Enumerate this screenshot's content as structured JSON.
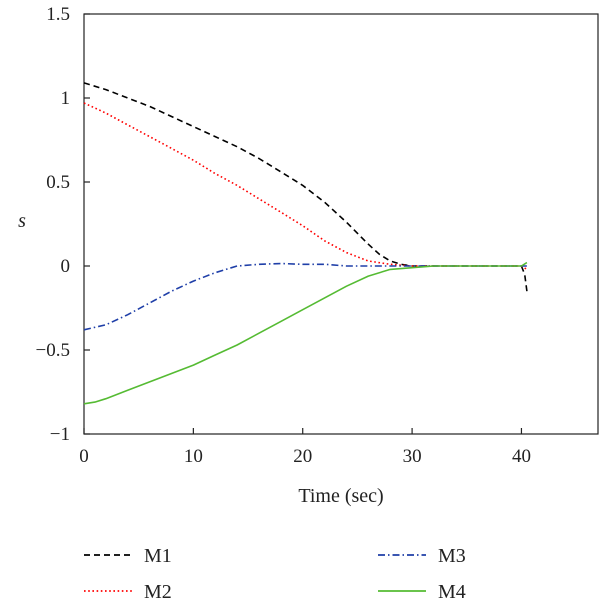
{
  "chart_data": {
    "type": "line",
    "title": "",
    "xlabel": "Time (sec)",
    "ylabel": "s",
    "xlim": [
      0,
      47
    ],
    "ylim": [
      -1,
      1.5
    ],
    "xticks": [
      0,
      10,
      20,
      30,
      40
    ],
    "yticks": [
      -1,
      -0.5,
      0,
      0.5,
      1,
      1.5
    ],
    "ytick_labels": [
      "−1",
      "−0.5",
      "0",
      "0.5",
      "1",
      "1.5"
    ],
    "grid": false,
    "legend_position": "bottom",
    "series": [
      {
        "name": "M1",
        "color": "#000000",
        "dash": "dashed",
        "x": [
          0,
          2,
          4,
          6,
          8,
          10,
          12,
          14,
          16,
          18,
          20,
          22,
          24,
          26,
          27,
          28,
          29,
          30,
          32,
          34,
          36,
          38,
          40,
          40.3,
          40.5
        ],
        "y": [
          1.09,
          1.05,
          1.0,
          0.95,
          0.89,
          0.83,
          0.77,
          0.71,
          0.64,
          0.56,
          0.48,
          0.38,
          0.26,
          0.13,
          0.07,
          0.03,
          0.01,
          0.0,
          0.0,
          0.0,
          0.0,
          0.0,
          0.0,
          -0.05,
          -0.15
        ]
      },
      {
        "name": "M2",
        "color": "#ff0000",
        "dash": "dotted",
        "x": [
          0,
          2,
          4,
          6,
          8,
          10,
          12,
          14,
          16,
          18,
          20,
          22,
          24,
          26,
          28,
          30,
          32,
          34,
          36,
          38,
          40,
          40.5
        ],
        "y": [
          0.97,
          0.91,
          0.84,
          0.77,
          0.7,
          0.63,
          0.55,
          0.48,
          0.4,
          0.32,
          0.24,
          0.15,
          0.08,
          0.03,
          0.01,
          0.0,
          0.0,
          0.0,
          0.0,
          0.0,
          0.0,
          -0.02
        ]
      },
      {
        "name": "M3",
        "color": "#1f3fa8",
        "dash": "dashdot",
        "x": [
          0,
          2,
          4,
          6,
          8,
          10,
          12,
          14,
          16,
          18,
          20,
          22,
          24,
          26,
          28,
          30,
          32,
          34,
          36,
          38,
          40,
          40.5
        ],
        "y": [
          -0.38,
          -0.35,
          -0.29,
          -0.22,
          -0.15,
          -0.09,
          -0.04,
          0.0,
          0.01,
          0.015,
          0.01,
          0.01,
          0.0,
          0.0,
          0.0,
          0.0,
          0.0,
          0.0,
          0.0,
          0.0,
          0.0,
          0.0
        ]
      },
      {
        "name": "M4",
        "color": "#55bb33",
        "dash": "solid",
        "x": [
          0,
          1,
          2,
          4,
          6,
          8,
          10,
          12,
          14,
          16,
          18,
          20,
          22,
          24,
          26,
          28,
          30,
          32,
          34,
          36,
          38,
          40,
          40.5
        ],
        "y": [
          -0.82,
          -0.81,
          -0.79,
          -0.74,
          -0.69,
          -0.64,
          -0.59,
          -0.53,
          -0.47,
          -0.4,
          -0.33,
          -0.26,
          -0.19,
          -0.12,
          -0.06,
          -0.02,
          -0.01,
          0.0,
          0.0,
          0.0,
          0.0,
          0.0,
          0.02
        ]
      }
    ]
  }
}
